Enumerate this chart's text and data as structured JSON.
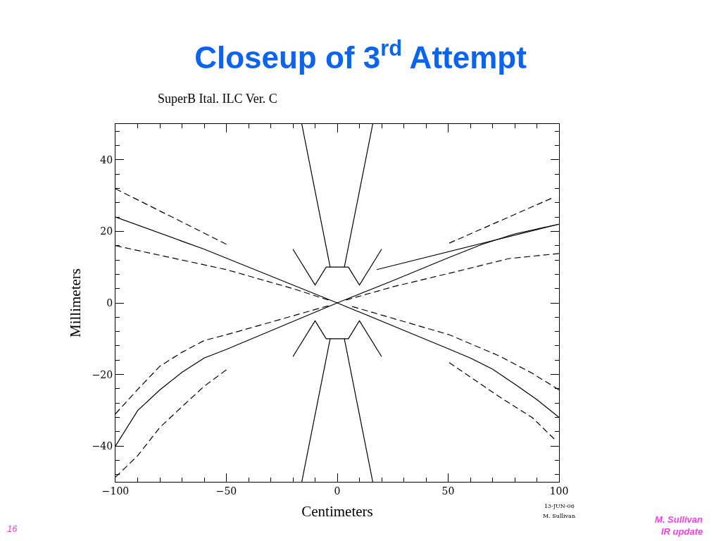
{
  "chart_data": {
    "type": "line",
    "title": "Closeup of 3$^{rd}$ Attempt",
    "subtitle": "SuperB Ital. ILC Ver. C",
    "xlabel": "Centimeters",
    "ylabel": "Millimeters",
    "xlim": [
      -100,
      100
    ],
    "xticks": [
      -100,
      -50,
      0,
      50,
      100
    ],
    "ylim": [
      -50,
      50
    ],
    "yticks": [
      -40,
      -20,
      0,
      20,
      40
    ],
    "marker": "none",
    "annotations": [
      "13-JUN-06",
      "M. Sullivan",
      "16",
      "M. Sullivan",
      "IR update"
    ],
    "series": [
      {
        "color": "#000000",
        "line_style": "solid",
        "x": [
          -100,
          -60,
          0,
          50,
          60,
          70,
          80,
          90,
          100
        ],
        "values": [
          24,
          15,
          0,
          -12.8,
          -15.4,
          -18.5,
          -22.7,
          -27,
          -32
        ]
      },
      {
        "color": "#000000",
        "line_style": "solid",
        "x": [
          -100,
          -90,
          -80,
          -70,
          -60,
          -50,
          0,
          25,
          50,
          65,
          80,
          100
        ],
        "values": [
          -40,
          -30.1,
          -24.3,
          -19.4,
          -15.4,
          -13,
          0,
          6.2,
          12.6,
          16.3,
          19.3,
          22
        ]
      },
      {
        "color": "#000000",
        "line_style": "solid",
        "x": [
          17.8,
          100
        ],
        "values": [
          9.3,
          22
        ]
      },
      {
        "color": "#000000",
        "line_style": "dashed",
        "x": [
          -100,
          -50
        ],
        "values": [
          31.9,
          16.4
        ]
      },
      {
        "color": "#000000",
        "line_style": "dashed",
        "x": [
          -100,
          -50,
          -20,
          -4
        ],
        "values": [
          16,
          9.3,
          4,
          0.8
        ]
      },
      {
        "color": "#000000",
        "line_style": "dashed",
        "x": [
          -100,
          -90,
          -80,
          -70,
          -60,
          -50,
          -4
        ],
        "values": [
          -31,
          -24.2,
          -17.7,
          -13.8,
          -10.5,
          -8.9,
          -0.8
        ]
      },
      {
        "color": "#000000",
        "line_style": "dashed",
        "x": [
          -100,
          -90,
          -80,
          -70,
          -60,
          -50
        ],
        "values": [
          -48.7,
          -42.7,
          -34.8,
          -29,
          -23.3,
          -18.7
        ]
      },
      {
        "color": "#000000",
        "line_style": "dashed",
        "x": [
          50.5,
          96.5
        ],
        "values": [
          16.7,
          29.2
        ]
      },
      {
        "color": "#000000",
        "line_style": "dashed",
        "x": [
          4,
          25,
          52,
          77.5,
          100
        ],
        "values": [
          0.8,
          4.5,
          8.5,
          12.4,
          13.8
        ]
      },
      {
        "color": "#000000",
        "line_style": "dashed",
        "x": [
          6.7,
          50.5,
          73,
          88,
          100
        ],
        "values": [
          -1,
          -8.9,
          -14.8,
          -19.7,
          -24.3
        ]
      },
      {
        "color": "#000000",
        "line_style": "dashed",
        "x": [
          50.5,
          73,
          88,
          97.8
        ],
        "values": [
          -16.7,
          -26.2,
          -32.1,
          -38
        ]
      },
      {
        "color": "#000000",
        "line_style": "solid",
        "x": [
          -20,
          -10,
          -5,
          5,
          10,
          20
        ],
        "values": [
          15,
          5,
          10,
          10,
          5,
          15
        ]
      },
      {
        "color": "#000000",
        "line_style": "solid",
        "x": [
          -16,
          -3.2
        ],
        "values": [
          50,
          10
        ]
      },
      {
        "color": "#000000",
        "line_style": "solid",
        "x": [
          3.2,
          16
        ],
        "values": [
          10,
          50
        ]
      },
      {
        "color": "#000000",
        "line_style": "solid",
        "x": [
          -20,
          -10,
          -5,
          5,
          10,
          20
        ],
        "values": [
          -15,
          -5,
          -10,
          -10,
          -5,
          -15
        ]
      },
      {
        "color": "#000000",
        "line_style": "solid",
        "x": [
          -16,
          -3.2
        ],
        "values": [
          -50,
          -10
        ]
      },
      {
        "color": "#000000",
        "line_style": "solid",
        "x": [
          3.2,
          16
        ],
        "values": [
          -10,
          -50
        ]
      }
    ]
  }
}
